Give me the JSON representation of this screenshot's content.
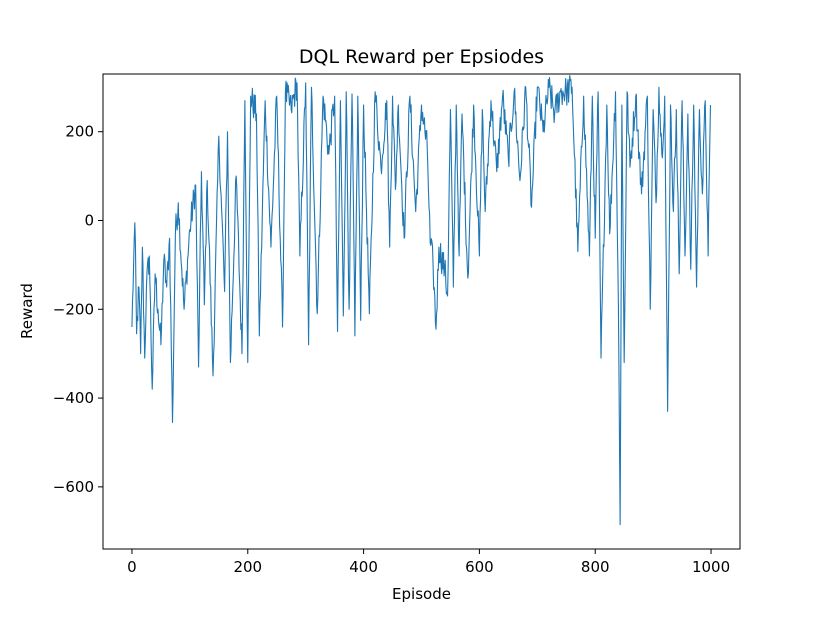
{
  "chart_data": {
    "type": "line",
    "title": "DQL Reward per Epsiodes",
    "xlabel": "Episode",
    "ylabel": "Reward",
    "xlim": [
      -50,
      1050
    ],
    "ylim": [
      -740,
      330
    ],
    "xticks": [
      0,
      200,
      400,
      600,
      800,
      1000
    ],
    "xtick_labels": [
      "0",
      "200",
      "400",
      "600",
      "800",
      "1000"
    ],
    "yticks": [
      -600,
      -400,
      -200,
      0,
      200
    ],
    "ytick_labels": [
      "−600",
      "−400",
      "−200",
      "0",
      "200"
    ],
    "line_color": "#1f77b4",
    "grid": false,
    "series": [
      {
        "x_start": 0,
        "x_end": 999,
        "anchors": [
          [
            0,
            -240
          ],
          [
            3,
            -90
          ],
          [
            5,
            -5
          ],
          [
            8,
            -255
          ],
          [
            12,
            -150
          ],
          [
            15,
            -300
          ],
          [
            18,
            -60
          ],
          [
            22,
            -310
          ],
          [
            25,
            -150
          ],
          [
            30,
            -80
          ],
          [
            35,
            -380
          ],
          [
            40,
            -120
          ],
          [
            45,
            -200
          ],
          [
            50,
            -280
          ],
          [
            55,
            -90
          ],
          [
            60,
            -150
          ],
          [
            65,
            -40
          ],
          [
            70,
            -455
          ],
          [
            75,
            -30
          ],
          [
            80,
            40
          ],
          [
            90,
            -200
          ],
          [
            100,
            -20
          ],
          [
            110,
            80
          ],
          [
            115,
            -330
          ],
          [
            120,
            110
          ],
          [
            125,
            -190
          ],
          [
            130,
            90
          ],
          [
            140,
            -350
          ],
          [
            150,
            190
          ],
          [
            155,
            20
          ],
          [
            160,
            -160
          ],
          [
            165,
            200
          ],
          [
            170,
            -320
          ],
          [
            180,
            100
          ],
          [
            190,
            -300
          ],
          [
            195,
            270
          ],
          [
            200,
            -320
          ],
          [
            205,
            280
          ],
          [
            215,
            240
          ],
          [
            220,
            -260
          ],
          [
            230,
            270
          ],
          [
            240,
            -60
          ],
          [
            250,
            280
          ],
          [
            260,
            -240
          ],
          [
            265,
            290
          ],
          [
            275,
            250
          ],
          [
            285,
            310
          ],
          [
            290,
            -80
          ],
          [
            300,
            310
          ],
          [
            305,
            -280
          ],
          [
            310,
            300
          ],
          [
            320,
            -210
          ],
          [
            330,
            280
          ],
          [
            340,
            150
          ],
          [
            350,
            280
          ],
          [
            355,
            -250
          ],
          [
            360,
            270
          ],
          [
            365,
            -215
          ],
          [
            370,
            290
          ],
          [
            375,
            -200
          ],
          [
            380,
            285
          ],
          [
            385,
            -260
          ],
          [
            390,
            280
          ],
          [
            395,
            -225
          ],
          [
            400,
            260
          ],
          [
            410,
            -210
          ],
          [
            420,
            290
          ],
          [
            430,
            120
          ],
          [
            440,
            270
          ],
          [
            445,
            -60
          ],
          [
            450,
            280
          ],
          [
            455,
            70
          ],
          [
            460,
            260
          ],
          [
            470,
            -40
          ],
          [
            480,
            280
          ],
          [
            490,
            20
          ],
          [
            500,
            260
          ],
          [
            510,
            160
          ],
          [
            515,
            -50
          ],
          [
            520,
            -100
          ],
          [
            525,
            -245
          ],
          [
            530,
            -60
          ],
          [
            540,
            -110
          ],
          [
            545,
            -170
          ],
          [
            550,
            250
          ],
          [
            555,
            -150
          ],
          [
            560,
            260
          ],
          [
            565,
            -80
          ],
          [
            570,
            240
          ],
          [
            580,
            -130
          ],
          [
            590,
            260
          ],
          [
            600,
            -80
          ],
          [
            605,
            250
          ],
          [
            610,
            20
          ],
          [
            620,
            270
          ],
          [
            630,
            110
          ],
          [
            640,
            280
          ],
          [
            650,
            140
          ],
          [
            660,
            290
          ],
          [
            670,
            90
          ],
          [
            680,
            300
          ],
          [
            690,
            30
          ],
          [
            700,
            300
          ],
          [
            710,
            200
          ],
          [
            720,
            300
          ],
          [
            730,
            240
          ],
          [
            740,
            290
          ],
          [
            750,
            290
          ],
          [
            760,
            300
          ],
          [
            770,
            -70
          ],
          [
            780,
            280
          ],
          [
            790,
            -80
          ],
          [
            795,
            280
          ],
          [
            800,
            -40
          ],
          [
            805,
            290
          ],
          [
            810,
            -310
          ],
          [
            820,
            260
          ],
          [
            825,
            -30
          ],
          [
            835,
            290
          ],
          [
            840,
            -190
          ],
          [
            843,
            -685
          ],
          [
            846,
            260
          ],
          [
            850,
            -320
          ],
          [
            855,
            290
          ],
          [
            860,
            120
          ],
          [
            870,
            280
          ],
          [
            880,
            60
          ],
          [
            890,
            280
          ],
          [
            895,
            -200
          ],
          [
            900,
            250
          ],
          [
            905,
            40
          ],
          [
            910,
            300
          ],
          [
            915,
            150
          ],
          [
            920,
            280
          ],
          [
            925,
            -430
          ],
          [
            930,
            260
          ],
          [
            935,
            20
          ],
          [
            940,
            250
          ],
          [
            945,
            -120
          ],
          [
            950,
            270
          ],
          [
            955,
            -80
          ],
          [
            960,
            240
          ],
          [
            965,
            -110
          ],
          [
            970,
            260
          ],
          [
            975,
            -150
          ],
          [
            980,
            250
          ],
          [
            985,
            60
          ],
          [
            990,
            270
          ],
          [
            995,
            -80
          ],
          [
            999,
            260
          ]
        ]
      }
    ]
  }
}
